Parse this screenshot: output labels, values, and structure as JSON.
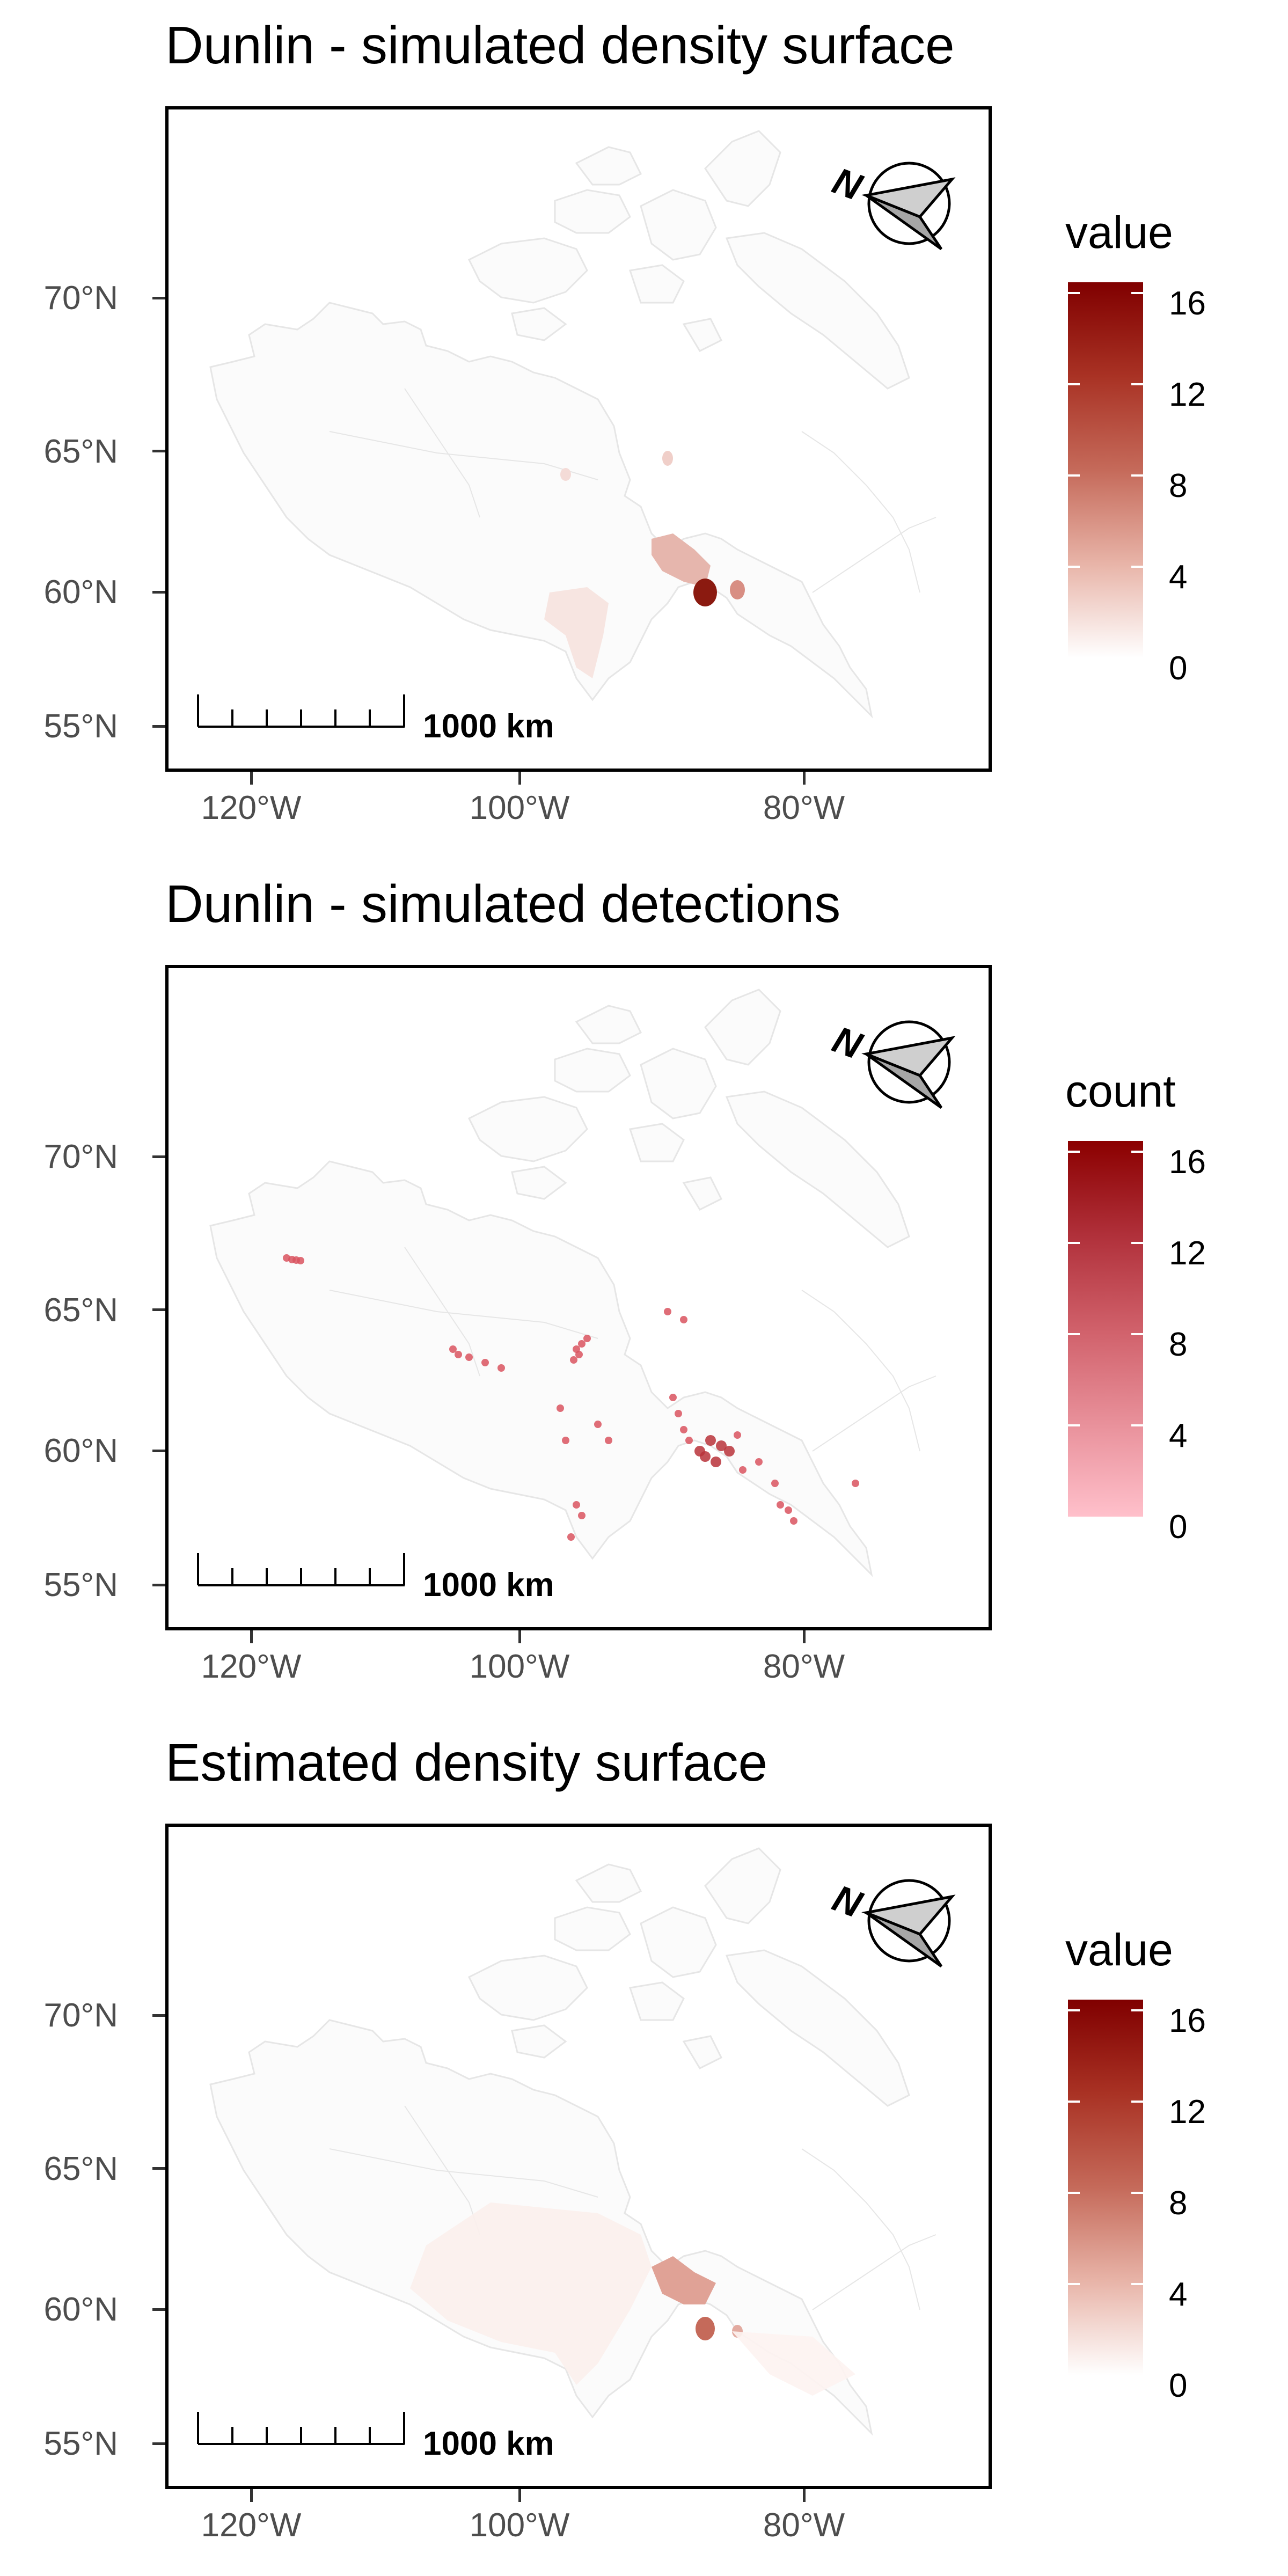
{
  "panels": [
    {
      "title": "Dunlin - simulated density surface",
      "legend_title": "value",
      "legend_gradient": [
        "#ffffff",
        "#e8b4a8",
        "#c56a5a",
        "#a93224",
        "#800000"
      ],
      "layer": "density",
      "intensity": 1.0
    },
    {
      "title": "Dunlin - simulated detections",
      "legend_title": "count",
      "legend_gradient": [
        "#ffc0cb",
        "#e8909a",
        "#d0606a",
        "#b0303a",
        "#8b0000"
      ],
      "layer": "detections",
      "intensity": 1.0
    },
    {
      "title": "Estimated density surface",
      "legend_title": "value",
      "legend_gradient": [
        "#ffffff",
        "#e8b4a8",
        "#c56a5a",
        "#a93224",
        "#800000"
      ],
      "layer": "estimated",
      "intensity": 1.0
    }
  ],
  "legend_ticks": [
    "0",
    "4",
    "8",
    "12",
    "16"
  ],
  "latitude_ticks": [
    "70°N",
    "65°N",
    "60°N",
    "55°N"
  ],
  "longitude_ticks": [
    "120°W",
    "100°W",
    "80°W"
  ],
  "scale_bar_label": "1000 km",
  "north_arrow_letter": "N",
  "map_extent": {
    "lon": [
      -126,
      -67
    ],
    "lat": [
      53.5,
      75
    ]
  },
  "colors": {
    "coastline": "#e6e6e6",
    "density_high": "#8b1a10",
    "density_mid": "#d9a096",
    "detection_point": "#d9535f"
  }
}
